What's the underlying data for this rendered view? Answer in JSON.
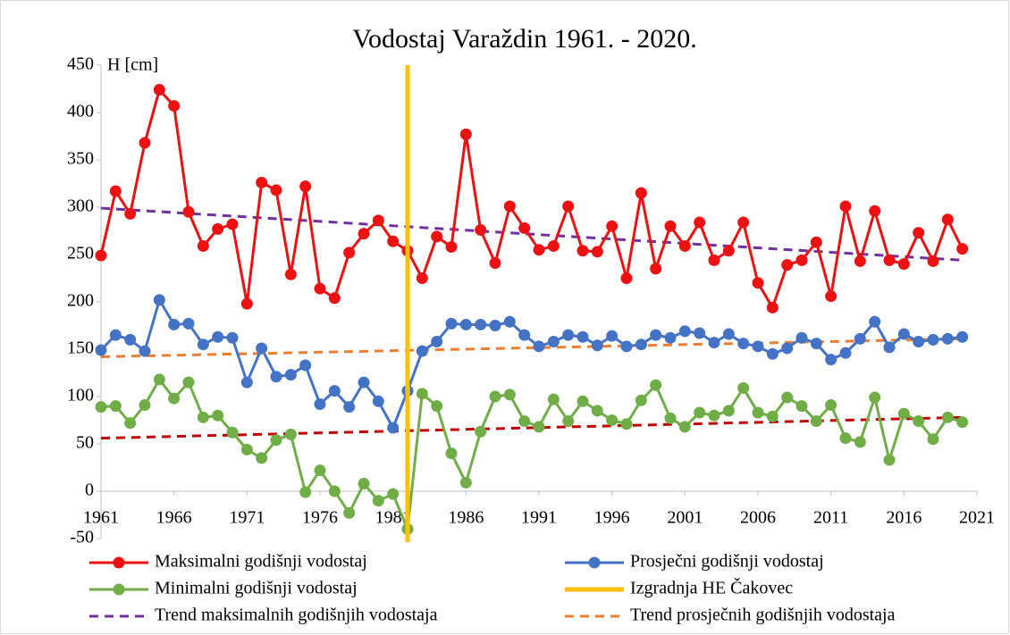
{
  "chart_data": {
    "type": "line",
    "title": "Vodostaj Varaždin 1961. - 2020.",
    "y_label": "H [cm]",
    "x": [
      1961,
      1962,
      1963,
      1964,
      1965,
      1966,
      1967,
      1968,
      1969,
      1970,
      1971,
      1972,
      1973,
      1974,
      1975,
      1976,
      1977,
      1978,
      1979,
      1980,
      1981,
      1982,
      1983,
      1984,
      1985,
      1986,
      1987,
      1988,
      1989,
      1990,
      1991,
      1992,
      1993,
      1994,
      1995,
      1996,
      1997,
      1998,
      1999,
      2000,
      2001,
      2002,
      2003,
      2004,
      2005,
      2006,
      2007,
      2008,
      2009,
      2010,
      2011,
      2012,
      2013,
      2014,
      2015,
      2016,
      2017,
      2018,
      2019,
      2020
    ],
    "xlim": [
      1961,
      2021
    ],
    "xticks": [
      1961,
      1966,
      1971,
      1976,
      1981,
      1986,
      1991,
      1996,
      2001,
      2006,
      2011,
      2016,
      2021
    ],
    "ylim": [
      -50,
      450
    ],
    "yticks": [
      -50,
      0,
      50,
      100,
      150,
      200,
      250,
      300,
      350,
      400,
      450
    ],
    "series": [
      {
        "name": "Maksimalni godišnji vodostaj",
        "color": "#ee1111",
        "kind": "marker-line",
        "values": [
          249,
          317,
          293,
          368,
          424,
          407,
          295,
          259,
          277,
          282,
          198,
          326,
          318,
          229,
          322,
          214,
          204,
          252,
          272,
          286,
          264,
          254,
          225,
          269,
          258,
          377,
          276,
          241,
          301,
          278,
          255,
          259,
          301,
          254,
          253,
          280,
          225,
          315,
          235,
          280,
          259,
          284,
          244,
          254,
          284,
          220,
          194,
          239,
          244,
          263,
          206,
          301,
          243,
          296,
          244,
          240,
          273,
          243,
          287,
          256
        ]
      },
      {
        "name": "Prosječni godišnji vodostaj",
        "color": "#4472c4",
        "kind": "marker-line",
        "values": [
          149,
          165,
          160,
          148,
          202,
          176,
          177,
          155,
          163,
          162,
          115,
          151,
          121,
          123,
          133,
          92,
          106,
          89,
          115,
          95,
          67,
          106,
          148,
          158,
          177,
          176,
          176,
          175,
          179,
          165,
          153,
          158,
          165,
          163,
          154,
          164,
          153,
          155,
          165,
          162,
          169,
          167,
          157,
          166,
          156,
          153,
          145,
          151,
          162,
          156,
          139,
          146,
          161,
          179,
          152,
          166,
          158,
          160,
          161,
          163
        ]
      },
      {
        "name": "Minimalni godišnji vodostaj",
        "color": "#70ad47",
        "kind": "marker-line",
        "values": [
          89,
          90,
          72,
          91,
          118,
          98,
          115,
          78,
          80,
          62,
          44,
          35,
          54,
          60,
          -1,
          22,
          0,
          -23,
          8,
          -10,
          -3,
          -40,
          103,
          90,
          40,
          9,
          63,
          100,
          102,
          74,
          68,
          97,
          74,
          95,
          85,
          75,
          71,
          96,
          112,
          77,
          68,
          83,
          80,
          85,
          109,
          83,
          79,
          99,
          90,
          74,
          91,
          56,
          52,
          99,
          33,
          82,
          74,
          55,
          78,
          73
        ]
      },
      {
        "name": "Izgradnja HE Čakovec",
        "color": "#ffc000",
        "kind": "vline",
        "x": 1982
      },
      {
        "name": "Trend maksimalnih godišnjih vodostaja",
        "color": "#7030a0",
        "kind": "dash",
        "x": [
          1961,
          2020
        ],
        "values": [
          299,
          244
        ]
      },
      {
        "name": "Trend prosječnih godišnjih vodostaja",
        "color": "#ed7d31",
        "kind": "dash",
        "x": [
          1961,
          2020
        ],
        "values": [
          142,
          161
        ]
      },
      {
        "color": "#c00000",
        "kind": "dash",
        "x": [
          1961,
          2020
        ],
        "values": [
          56,
          78
        ]
      }
    ]
  }
}
